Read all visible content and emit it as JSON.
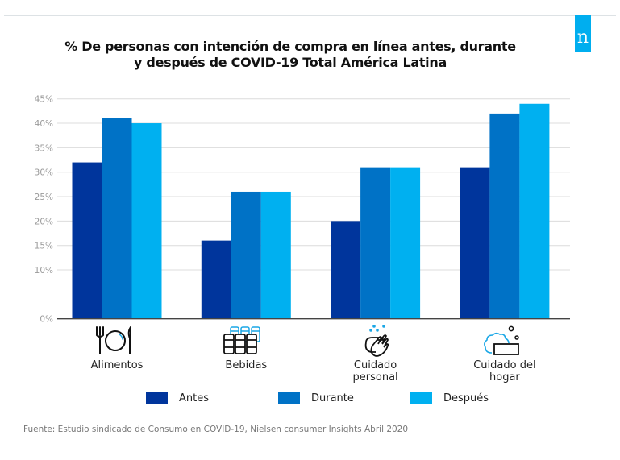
{
  "brand": {
    "logo_letter": "n",
    "logo_color": "#00AEEF"
  },
  "chart_data": {
    "type": "bar",
    "title_lines": [
      "% De personas con intención de compra en línea antes, durante",
      "y después de COVID-19 Total América Latina"
    ],
    "categories": [
      "Alimentos",
      "Bebidas",
      "Cuidado personal",
      "Cuidado del hogar"
    ],
    "category_label_lines": [
      [
        "Alimentos"
      ],
      [
        "Bebidas"
      ],
      [
        "Cuidado",
        "personal"
      ],
      [
        "Cuidado del",
        "hogar"
      ]
    ],
    "category_icons": [
      "plate-cutlery-icon",
      "beverage-cans-icon",
      "hand-washing-icon",
      "soap-bar-icon"
    ],
    "series": [
      {
        "name": "Antes",
        "color": "#00359C",
        "values": [
          32,
          16,
          20,
          31
        ]
      },
      {
        "name": "Durante",
        "color": "#0072C6",
        "values": [
          41,
          26,
          31,
          42
        ]
      },
      {
        "name": "Después",
        "color": "#00B0F0",
        "values": [
          40,
          26,
          31,
          44
        ]
      }
    ],
    "yticks": [
      "0%",
      "10%",
      "15%",
      "20%",
      "25%",
      "30%",
      "35%",
      "40%",
      "45%"
    ],
    "ytick_values": [
      0,
      10,
      15,
      20,
      25,
      30,
      35,
      40,
      45
    ],
    "ylim": [
      0,
      45
    ],
    "xlabel": "",
    "ylabel": "",
    "grid": true,
    "legend_placement": "bottom"
  },
  "legend": {
    "items": [
      "Antes",
      "Durante",
      "Después"
    ]
  },
  "source": "Fuente: Estudio sindicado de Consumo en COVID-19, Nielsen consumer Insights Abril 2020"
}
